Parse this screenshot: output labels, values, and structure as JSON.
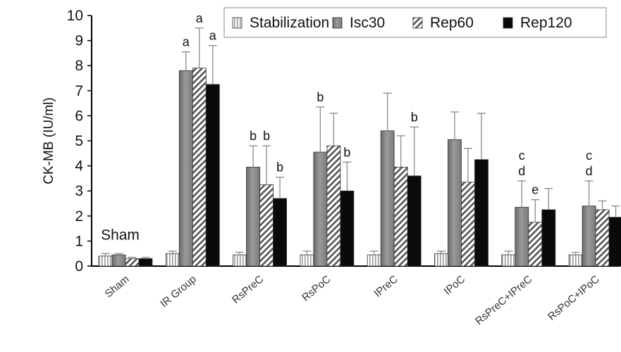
{
  "chart_data": {
    "type": "bar",
    "ylabel": "CK-MB (IU/ml)",
    "ylim": [
      0,
      10
    ],
    "yticks": [
      0,
      1,
      2,
      3,
      4,
      5,
      6,
      7,
      8,
      9,
      10
    ],
    "categories": [
      "Sham",
      "IR Group",
      "RsPreC",
      "RsPoC",
      "IPreC",
      "IPoC",
      "RsPreC+IPreC",
      "RsPoC+IPoC"
    ],
    "legend_position": "top-right",
    "series": [
      {
        "name": "Stabilization",
        "pattern": "vertical-stripes",
        "values": [
          0.4,
          0.5,
          0.45,
          0.45,
          0.45,
          0.5,
          0.45,
          0.45
        ],
        "errors": [
          0.1,
          0.1,
          0.1,
          0.15,
          0.15,
          0.1,
          0.15,
          0.1
        ]
      },
      {
        "name": "Isc30",
        "pattern": "gray",
        "values": [
          0.45,
          7.8,
          3.95,
          4.55,
          5.4,
          5.05,
          2.35,
          2.4
        ],
        "errors": [
          0.05,
          0.75,
          0.85,
          1.8,
          1.5,
          1.1,
          1.05,
          1.0
        ]
      },
      {
        "name": "Rep60",
        "pattern": "diagonal-hatch",
        "values": [
          0.3,
          7.9,
          3.25,
          4.8,
          3.95,
          3.35,
          1.75,
          2.25
        ],
        "errors": [
          0.05,
          1.6,
          1.55,
          1.3,
          1.25,
          1.35,
          0.9,
          0.35
        ]
      },
      {
        "name": "Rep120",
        "pattern": "black",
        "values": [
          0.3,
          7.25,
          2.7,
          3.0,
          3.6,
          4.25,
          2.25,
          1.95
        ],
        "errors": [
          0.05,
          1.55,
          0.85,
          1.15,
          1.95,
          1.85,
          0.85,
          0.45
        ]
      }
    ],
    "annotations": [
      {
        "category": "Sham",
        "series": "Isc30",
        "text": "Sham"
      },
      {
        "category": "IR Group",
        "series": "Isc30",
        "text": "a"
      },
      {
        "category": "IR Group",
        "series": "Rep60",
        "text": "a"
      },
      {
        "category": "IR Group",
        "series": "Rep120",
        "text": "a"
      },
      {
        "category": "RsPreC",
        "series": "Isc30",
        "text": "b"
      },
      {
        "category": "RsPreC",
        "series": "Rep60",
        "text": "b"
      },
      {
        "category": "RsPreC",
        "series": "Rep120",
        "text": "b"
      },
      {
        "category": "RsPoC",
        "series": "Isc30",
        "text": "b"
      },
      {
        "category": "RsPoC",
        "series": "Rep120",
        "text": "b"
      },
      {
        "category": "IPreC",
        "series": "Rep120",
        "text": "b"
      },
      {
        "category": "RsPreC+IPreC",
        "series": "Isc30",
        "text": "d"
      },
      {
        "category": "RsPreC+IPreC",
        "series": "Isc30",
        "text": "c"
      },
      {
        "category": "RsPreC+IPreC",
        "series": "Rep60",
        "text": "e"
      },
      {
        "category": "RsPoC+IPoC",
        "series": "Isc30",
        "text": "d"
      },
      {
        "category": "RsPoC+IPoC",
        "series": "Isc30",
        "text": "c"
      }
    ],
    "legend_labels": [
      "Stabilization",
      "Isc30",
      "Rep60",
      "Rep120"
    ]
  }
}
